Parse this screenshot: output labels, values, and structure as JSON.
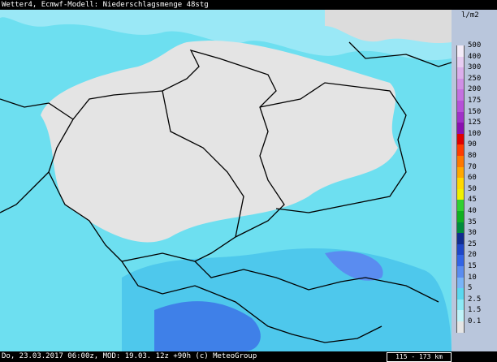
{
  "header": {
    "title": "Wetter4, Ecmwf-Modell: Niederschlagsmenge 48stg"
  },
  "legend": {
    "unit": "l/m2",
    "entries": [
      {
        "label": "500",
        "color": "#f4ecf8"
      },
      {
        "label": "400",
        "color": "#e8cdf2"
      },
      {
        "label": "300",
        "color": "#dcaeec"
      },
      {
        "label": "250",
        "color": "#d08fe6"
      },
      {
        "label": "200",
        "color": "#c470e0"
      },
      {
        "label": "175",
        "color": "#b650d8"
      },
      {
        "label": "150",
        "color": "#a030c8"
      },
      {
        "label": "125",
        "color": "#8a10b0"
      },
      {
        "label": "100",
        "color": "#e00000"
      },
      {
        "label": "90",
        "color": "#ff3c00"
      },
      {
        "label": "80",
        "color": "#ff7800"
      },
      {
        "label": "70",
        "color": "#ffa800"
      },
      {
        "label": "60",
        "color": "#ffd800"
      },
      {
        "label": "50",
        "color": "#f0f000"
      },
      {
        "label": "45",
        "color": "#30d030"
      },
      {
        "label": "40",
        "color": "#10b020"
      },
      {
        "label": "35",
        "color": "#008c3c"
      },
      {
        "label": "30",
        "color": "#102c90"
      },
      {
        "label": "25",
        "color": "#1e46c8"
      },
      {
        "label": "20",
        "color": "#3264e6"
      },
      {
        "label": "15",
        "color": "#5a8cf0"
      },
      {
        "label": "10",
        "color": "#78b4f8"
      },
      {
        "label": "5",
        "color": "#5ad8f0"
      },
      {
        "label": "2.5",
        "color": "#8ceaf6"
      },
      {
        "label": "1.5",
        "color": "#c0f4fa"
      },
      {
        "label": "0.1",
        "color": "#e6e6e6"
      }
    ]
  },
  "footer": {
    "text": "Do, 23.03.2017 06:00z, MOD: 19.03. 12z +90h (c) MeteoGroup",
    "scale": "115 - 173 km"
  }
}
